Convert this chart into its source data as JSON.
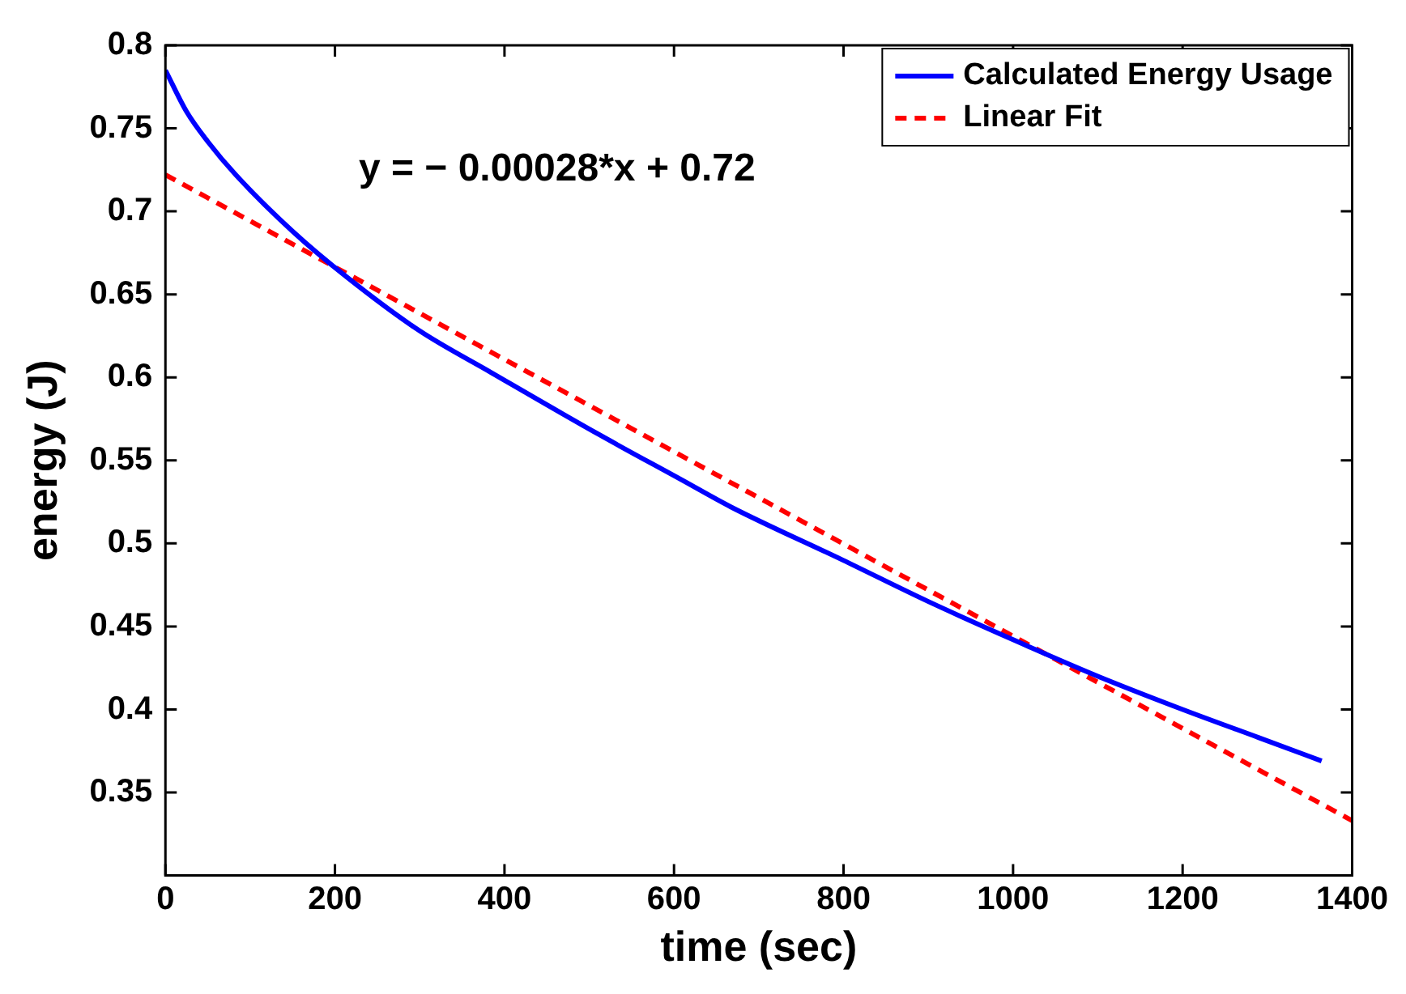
{
  "chart_data": {
    "type": "line",
    "xlabel": "time (sec)",
    "ylabel": "energy (J)",
    "annotations": [
      "y = − 0.00028*x + 0.72"
    ],
    "xlim": [
      0,
      1400
    ],
    "xticks": [
      0,
      200,
      400,
      600,
      800,
      1000,
      1200,
      1400
    ],
    "ylim": [
      0.3,
      0.8
    ],
    "yticks": [
      0.35,
      0.4,
      0.45,
      0.5,
      0.55,
      0.6,
      0.65,
      0.7,
      0.75,
      0.8
    ],
    "grid": false,
    "legend": "top right",
    "marker": "none",
    "series": [
      {
        "name": "Calculated Energy Usage",
        "color": "#0000ff",
        "line_style": "solid",
        "x": [
          0,
          25,
          50,
          83,
          150,
          215,
          300,
          384,
          510,
          610,
          667,
          799,
          900,
          1000,
          1100,
          1200,
          1290,
          1364
        ],
        "values": [
          0.785,
          0.76,
          0.742,
          0.722,
          0.688,
          0.66,
          0.628,
          0.603,
          0.566,
          0.538,
          0.522,
          0.49,
          0.465,
          0.442,
          0.42,
          0.4,
          0.383,
          0.369
        ]
      },
      {
        "name": "Linear Fit",
        "color": "#ff0000",
        "line_style": "dashed",
        "x": [
          0,
          1400
        ],
        "values": [
          0.722,
          0.333
        ]
      }
    ]
  }
}
